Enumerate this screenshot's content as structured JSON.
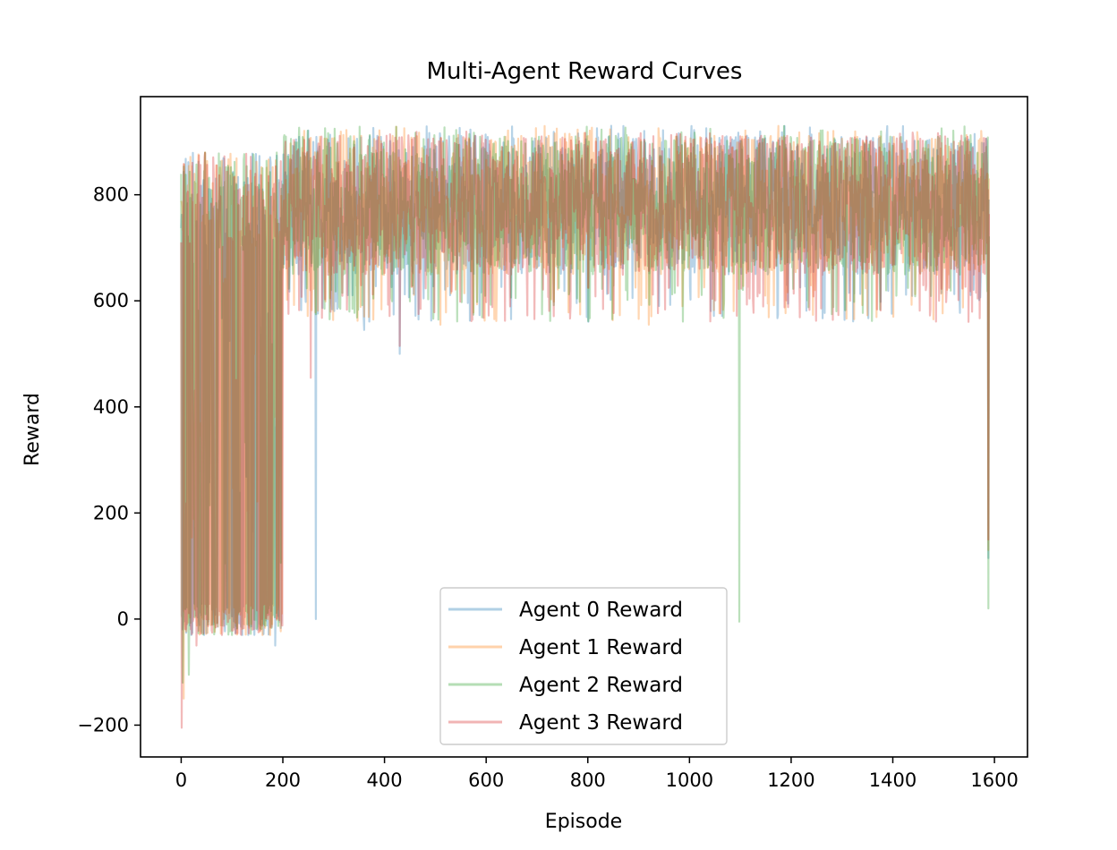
{
  "chart_data": {
    "type": "line",
    "title": "Multi-Agent Reward Curves",
    "xlabel": "Episode",
    "ylabel": "Reward",
    "xlim": [
      -80,
      1665
    ],
    "ylim": [
      -260,
      985
    ],
    "xticks": [
      0,
      200,
      400,
      600,
      800,
      1000,
      1200,
      1400,
      1600
    ],
    "yticks": [
      -200,
      0,
      200,
      400,
      600,
      800
    ],
    "xtick_labels": [
      "0",
      "200",
      "400",
      "600",
      "800",
      "1000",
      "1200",
      "1400",
      "1600"
    ],
    "ytick_labels": [
      "−200",
      "0",
      "200",
      "400",
      "600",
      "800"
    ],
    "legend_position": "lower center",
    "n_episodes": 1590,
    "series": [
      {
        "name": "Agent 0 Reward",
        "color": "#1f77b4",
        "profile": {
          "early_phase_end": 200,
          "steady_mean": 780,
          "steady_band": [
            650,
            900
          ],
          "steady_max": 930,
          "dips": [
            [
              20,
              -30
            ],
            [
              45,
              -30
            ],
            [
              120,
              -30
            ],
            [
              150,
              -20
            ],
            [
              185,
              -50
            ],
            [
              265,
              0
            ],
            [
              360,
              545
            ],
            [
              430,
              500
            ],
            [
              1588,
              115
            ]
          ]
        }
      },
      {
        "name": "Agent 1 Reward",
        "color": "#ff7f0e",
        "profile": {
          "early_phase_end": 200,
          "steady_mean": 780,
          "steady_band": [
            650,
            900
          ],
          "steady_max": 930,
          "dips": [
            [
              5,
              -150
            ],
            [
              60,
              -10
            ],
            [
              160,
              -30
            ],
            [
              175,
              -30
            ],
            [
              510,
              555
            ],
            [
              920,
              555
            ],
            [
              1588,
              130
            ]
          ]
        }
      },
      {
        "name": "Agent 2 Reward",
        "color": "#2ca02c",
        "profile": {
          "early_phase_end": 200,
          "steady_mean": 780,
          "steady_band": [
            650,
            900
          ],
          "steady_max": 930,
          "dips": [
            [
              3,
              -120
            ],
            [
              15,
              -105
            ],
            [
              100,
              -30
            ],
            [
              130,
              -10
            ],
            [
              1098,
              -5
            ],
            [
              1588,
              20
            ]
          ]
        }
      },
      {
        "name": "Agent 3 Reward",
        "color": "#d62728",
        "profile": {
          "early_phase_end": 200,
          "steady_mean": 780,
          "steady_band": [
            650,
            900
          ],
          "steady_max": 920,
          "dips": [
            [
              1,
              -205
            ],
            [
              30,
              -50
            ],
            [
              80,
              -30
            ],
            [
              140,
              -20
            ],
            [
              255,
              455
            ],
            [
              430,
              515
            ],
            [
              1588,
              150
            ]
          ]
        }
      }
    ]
  }
}
